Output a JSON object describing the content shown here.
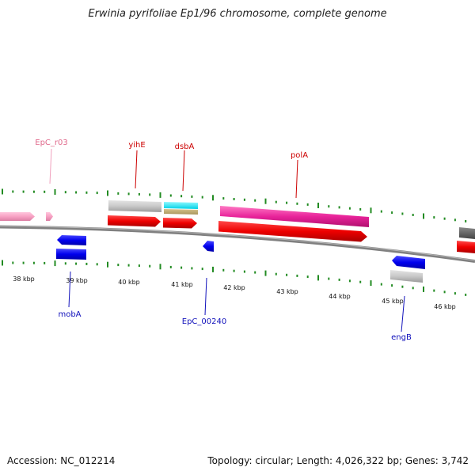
{
  "title": "Erwinia pyrifoliae Ep1/96 chromosome, complete genome",
  "footer": {
    "accession": "Accession: NC_012214",
    "summary": "Topology: circular; Length: 4,026,322 bp; Genes: 3,742"
  },
  "colors": {
    "backbone": "#808080",
    "tick": "#228b22",
    "upper_label": "#cc0000",
    "rna_label": "#e06a8c",
    "lower_label": "#1111bb"
  },
  "scale": {
    "unit": "kbp",
    "labels": [
      "38 kbp",
      "39 kbp",
      "40 kbp",
      "41 kbp",
      "42 kbp",
      "43 kbp",
      "44 kbp",
      "45 kbp",
      "46 kbp"
    ]
  },
  "gene_labels": {
    "upper": [
      {
        "text": "EpC_r03",
        "kind": "rna"
      },
      {
        "text": "yihE",
        "kind": "gene"
      },
      {
        "text": "dsbA",
        "kind": "gene"
      },
      {
        "text": "polA",
        "kind": "gene"
      }
    ],
    "lower": [
      {
        "text": "mobA"
      },
      {
        "text": "EpC_00240"
      },
      {
        "text": "engB"
      }
    ]
  }
}
